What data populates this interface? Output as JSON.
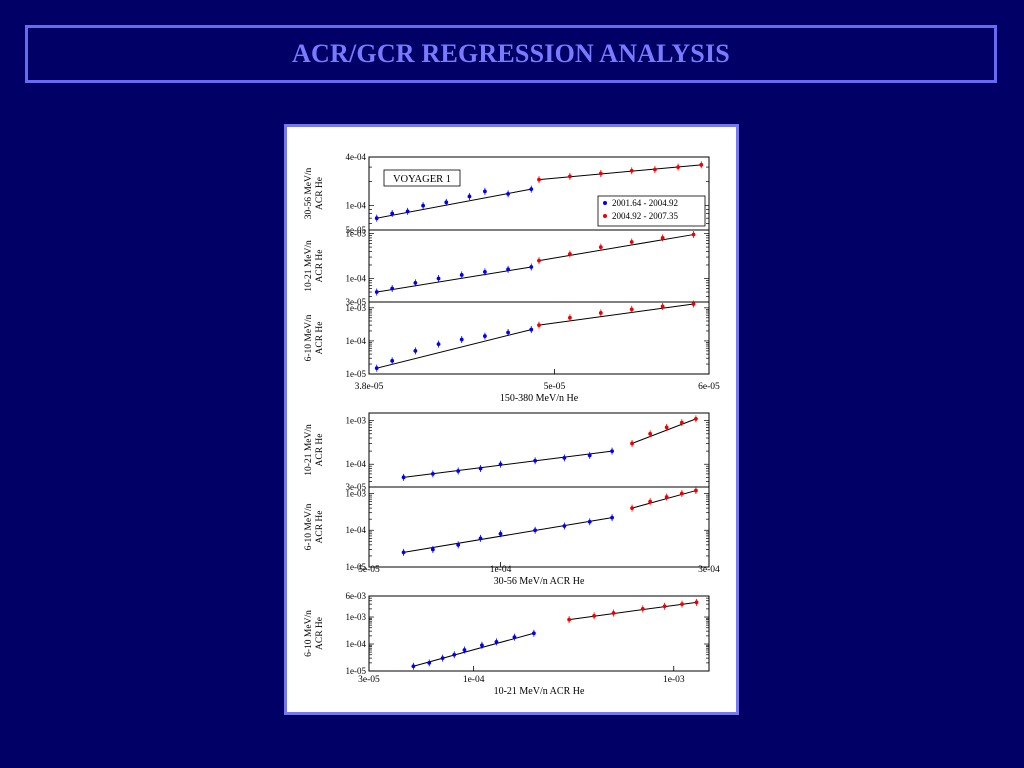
{
  "slide": {
    "title": "ACR/GCR REGRESSION ANALYSIS"
  },
  "colors": {
    "background": "#000066",
    "title_text": "#7a7aff",
    "title_border": "#6a6af0",
    "series_early": "#0000ee",
    "series_late": "#ee0000",
    "fit_line": "#000000"
  },
  "chart_data": [
    {
      "type": "scatter",
      "annotation": "VOYAGER 1",
      "legend": [
        "2001.64 - 2004.92",
        "2004.92 - 2007.35"
      ],
      "legend_placement": "right",
      "xlabel": "150-380 MeV/n He",
      "x_ticks": [
        "3.8e-05",
        "5e-05",
        "6e-05"
      ],
      "xlim": [
        3.8e-05,
        6e-05
      ],
      "x_scale": "linear",
      "y_scale": "log",
      "panels": [
        {
          "ylabel": "30-56 MeV/n ACR He",
          "y_ticks": [
            "4e-04",
            "1e-04",
            "5e-05"
          ],
          "ylim": [
            5e-05,
            0.0004
          ],
          "series": [
            {
              "name": "2001.64 - 2004.92",
              "x": [
                3.85e-05,
                3.95e-05,
                4.05e-05,
                4.15e-05,
                4.3e-05,
                4.45e-05,
                4.55e-05,
                4.7e-05,
                4.85e-05
              ],
              "y": [
                7e-05,
                8e-05,
                8.5e-05,
                0.0001,
                0.00011,
                0.00013,
                0.00015,
                0.00014,
                0.00016
              ]
            },
            {
              "name": "2004.92 - 2007.35",
              "x": [
                4.9e-05,
                5.1e-05,
                5.3e-05,
                5.5e-05,
                5.65e-05,
                5.8e-05,
                5.95e-05
              ],
              "y": [
                0.00021,
                0.00023,
                0.00025,
                0.00027,
                0.00028,
                0.0003,
                0.00032
              ]
            }
          ]
        },
        {
          "ylabel": "10-21 MeV/n ACR He",
          "y_ticks": [
            "1e-03",
            "1e-04",
            "3e-05"
          ],
          "ylim": [
            3e-05,
            0.0012
          ],
          "series": [
            {
              "name": "2001.64 - 2004.92",
              "x": [
                3.85e-05,
                3.95e-05,
                4.1e-05,
                4.25e-05,
                4.4e-05,
                4.55e-05,
                4.7e-05,
                4.85e-05
              ],
              "y": [
                5e-05,
                6e-05,
                8e-05,
                0.0001,
                0.00012,
                0.00014,
                0.00016,
                0.00018
              ]
            },
            {
              "name": "2004.92 - 2007.35",
              "x": [
                4.9e-05,
                5.1e-05,
                5.3e-05,
                5.5e-05,
                5.7e-05,
                5.9e-05
              ],
              "y": [
                0.00025,
                0.00035,
                0.0005,
                0.00065,
                0.0008,
                0.00095
              ]
            }
          ]
        },
        {
          "ylabel": "6-10 MeV/n ACR He",
          "y_ticks": [
            "1e-03",
            "1e-04",
            "1e-05"
          ],
          "ylim": [
            1e-05,
            0.0015
          ],
          "series": [
            {
              "name": "2001.64 - 2004.92",
              "x": [
                3.85e-05,
                3.95e-05,
                4.1e-05,
                4.25e-05,
                4.4e-05,
                4.55e-05,
                4.7e-05,
                4.85e-05
              ],
              "y": [
                1.5e-05,
                2.5e-05,
                5e-05,
                8e-05,
                0.00011,
                0.00014,
                0.00018,
                0.00022
              ]
            },
            {
              "name": "2004.92 - 2007.35",
              "x": [
                4.9e-05,
                5.1e-05,
                5.3e-05,
                5.5e-05,
                5.7e-05,
                5.9e-05
              ],
              "y": [
                0.0003,
                0.0005,
                0.0007,
                0.0009,
                0.0011,
                0.0013
              ]
            }
          ]
        }
      ]
    },
    {
      "type": "scatter",
      "xlabel": "30-56 MeV/n ACR He",
      "x_ticks": [
        "5e-05",
        "1e-04",
        "3e-04"
      ],
      "xlim": [
        5e-05,
        0.0003
      ],
      "x_scale": "log",
      "y_scale": "log",
      "panels": [
        {
          "ylabel": "10-21 MeV/n ACR He",
          "y_ticks": [
            "1e-03",
            "1e-04",
            "3e-05"
          ],
          "ylim": [
            3e-05,
            0.0015
          ],
          "series": [
            {
              "name": "2001.64 - 2004.92",
              "x": [
                6e-05,
                7e-05,
                8e-05,
                9e-05,
                0.0001,
                0.00012,
                0.00014,
                0.00016,
                0.00018
              ],
              "y": [
                5e-05,
                6e-05,
                7e-05,
                8e-05,
                0.0001,
                0.00012,
                0.00014,
                0.00016,
                0.0002
              ]
            },
            {
              "name": "2004.92 - 2007.35",
              "x": [
                0.0002,
                0.00022,
                0.00024,
                0.00026,
                0.00028
              ],
              "y": [
                0.0003,
                0.0005,
                0.0007,
                0.0009,
                0.0011
              ]
            }
          ]
        },
        {
          "ylabel": "6-10 MeV/n ACR He",
          "y_ticks": [
            "1e-03",
            "1e-04",
            "1e-05"
          ],
          "ylim": [
            1e-05,
            0.0015
          ],
          "series": [
            {
              "name": "2001.64 - 2004.92",
              "x": [
                6e-05,
                7e-05,
                8e-05,
                9e-05,
                0.0001,
                0.00012,
                0.00014,
                0.00016,
                0.00018
              ],
              "y": [
                2.5e-05,
                3e-05,
                4e-05,
                6e-05,
                8e-05,
                0.0001,
                0.00013,
                0.00017,
                0.00022
              ]
            },
            {
              "name": "2004.92 - 2007.35",
              "x": [
                0.0002,
                0.00022,
                0.00024,
                0.00026,
                0.00028
              ],
              "y": [
                0.0004,
                0.0006,
                0.0008,
                0.001,
                0.0012
              ]
            }
          ]
        }
      ]
    },
    {
      "type": "scatter",
      "xlabel": "10-21 MeV/n ACR He",
      "x_ticks": [
        "3e-05",
        "1e-04",
        "1e-03"
      ],
      "xlim": [
        3e-05,
        0.0015
      ],
      "x_scale": "log",
      "y_scale": "log",
      "panels": [
        {
          "ylabel": "6-10 MeV/n ACR He",
          "y_ticks": [
            "6e-03",
            "1e-03",
            "1e-04",
            "1e-05"
          ],
          "ylim": [
            1e-05,
            0.006
          ],
          "series": [
            {
              "name": "2001.64 - 2004.92",
              "x": [
                5e-05,
                6e-05,
                7e-05,
                8e-05,
                9e-05,
                0.00011,
                0.00013,
                0.00016,
                0.0002
              ],
              "y": [
                1.5e-05,
                2e-05,
                3e-05,
                4e-05,
                6e-05,
                9e-05,
                0.00012,
                0.00018,
                0.00025
              ]
            },
            {
              "name": "2004.92 - 2007.35",
              "x": [
                0.0003,
                0.0004,
                0.0005,
                0.0007,
                0.0009,
                0.0011,
                0.0013
              ],
              "y": [
                0.0008,
                0.0011,
                0.0014,
                0.002,
                0.0025,
                0.003,
                0.0035
              ]
            }
          ]
        }
      ]
    }
  ]
}
